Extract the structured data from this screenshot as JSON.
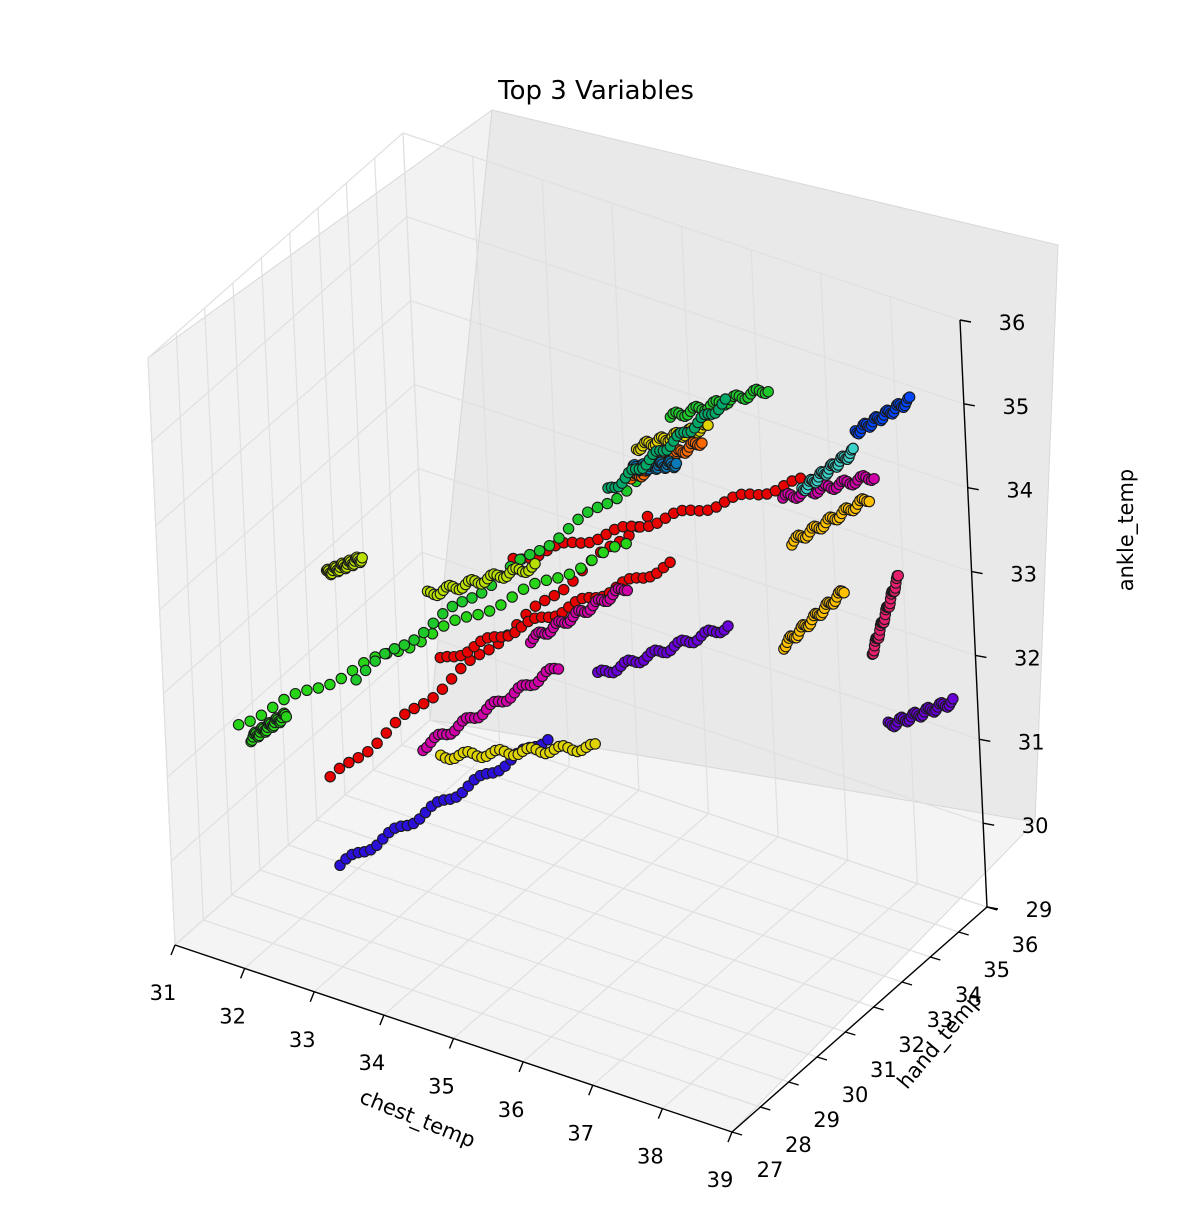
{
  "chart_data": {
    "type": "scatter",
    "title": "Top 3 Variables",
    "xlabel": "chest_temp",
    "ylabel": "hand_temp",
    "zlabel": "ankle_temp",
    "xlim": [
      31,
      39
    ],
    "ylim": [
      27,
      36
    ],
    "zlim": [
      29,
      36
    ],
    "x_ticks": [
      "31",
      "32",
      "33",
      "34",
      "35",
      "36",
      "37",
      "38",
      "39"
    ],
    "y_ticks": [
      "27",
      "28",
      "29",
      "30",
      "31",
      "32",
      "33",
      "34",
      "35",
      "36"
    ],
    "z_ticks": [
      "29",
      "30",
      "31",
      "32",
      "33",
      "34",
      "35",
      "36"
    ],
    "grid": true,
    "projection": "3d",
    "series": [
      {
        "color": "#2a10d8",
        "points": [
          [
            32.6,
            29.0,
            29.8
          ],
          [
            34.9,
            30.9,
            31.4
          ]
        ]
      },
      {
        "color": "#e60000",
        "points": [
          [
            32.0,
            30.2,
            30.3
          ],
          [
            35.6,
            33.0,
            33.6
          ]
        ]
      },
      {
        "color": "#e60000",
        "points": [
          [
            33.6,
            30.4,
            32.1
          ],
          [
            36.2,
            32.3,
            33.4
          ]
        ]
      },
      {
        "color": "#e60000",
        "points": [
          [
            34.3,
            31.4,
            33.2
          ],
          [
            37.6,
            33.6,
            34.4
          ]
        ]
      },
      {
        "color": "#27d418",
        "points": [
          [
            31.0,
            29.5,
            30.9
          ],
          [
            35.4,
            32.7,
            33.3
          ]
        ]
      },
      {
        "color": "#27d418",
        "points": [
          [
            31.0,
            29.9,
            30.6
          ],
          [
            31.4,
            30.2,
            30.9
          ]
        ]
      },
      {
        "color": "#1ec82a",
        "points": [
          [
            32.4,
            30.3,
            31.6
          ],
          [
            36.1,
            33.2,
            34.5
          ]
        ]
      },
      {
        "color": "#1ec82a",
        "points": [
          [
            36.0,
            33.0,
            34.9
          ],
          [
            37.1,
            33.8,
            35.3
          ]
        ]
      },
      {
        "color": "#b8e000",
        "points": [
          [
            32.0,
            30.4,
            32.7
          ],
          [
            32.4,
            30.7,
            32.9
          ]
        ]
      },
      {
        "color": "#b8e000",
        "points": [
          [
            33.2,
            31.0,
            32.6
          ],
          [
            34.4,
            31.9,
            33.0
          ]
        ]
      },
      {
        "color": "#e0d400",
        "points": [
          [
            33.5,
            30.5,
            30.9
          ],
          [
            35.2,
            31.8,
            31.1
          ]
        ]
      },
      {
        "color": "#e0d400",
        "points": [
          [
            35.7,
            32.5,
            34.6
          ],
          [
            36.5,
            33.1,
            34.9
          ]
        ]
      },
      {
        "color": "#d000a8",
        "points": [
          [
            33.2,
            30.6,
            30.9
          ],
          [
            34.8,
            31.6,
            32.0
          ]
        ]
      },
      {
        "color": "#d000a8",
        "points": [
          [
            34.5,
            31.4,
            32.3
          ],
          [
            35.6,
            32.2,
            33.0
          ]
        ]
      },
      {
        "color": "#d000a8",
        "points": [
          [
            37.2,
            33.9,
            34.0
          ],
          [
            38.2,
            34.7,
            34.3
          ]
        ]
      },
      {
        "color": "#6a00d8",
        "points": [
          [
            35.2,
            32.0,
            31.9
          ],
          [
            36.7,
            33.0,
            32.6
          ]
        ]
      },
      {
        "color": "#6a00d8",
        "points": [
          [
            38.2,
            34.8,
            31.3
          ],
          [
            38.9,
            35.4,
            31.6
          ]
        ]
      },
      {
        "color": "#0046ff",
        "points": [
          [
            38.0,
            34.6,
            34.8
          ],
          [
            38.6,
            35.1,
            35.2
          ]
        ]
      },
      {
        "color": "#e61e6e",
        "points": [
          [
            38.1,
            34.6,
            32.2
          ],
          [
            38.4,
            34.9,
            33.1
          ]
        ]
      },
      {
        "color": "#ffc000",
        "points": [
          [
            37.2,
            33.7,
            32.3
          ],
          [
            37.9,
            34.2,
            33.0
          ]
        ]
      },
      {
        "color": "#ffc000",
        "points": [
          [
            37.3,
            33.9,
            33.5
          ],
          [
            38.2,
            34.5,
            34.1
          ]
        ]
      },
      {
        "color": "#ff6a00",
        "points": [
          [
            35.6,
            32.5,
            34.2
          ],
          [
            36.4,
            33.1,
            34.7
          ]
        ]
      },
      {
        "color": "#0a7ab8",
        "points": [
          [
            35.6,
            32.6,
            34.3
          ],
          [
            36.1,
            32.9,
            34.4
          ]
        ]
      },
      {
        "color": "#00a868",
        "points": [
          [
            35.3,
            32.4,
            34.0
          ],
          [
            36.6,
            33.5,
            35.1
          ]
        ]
      },
      {
        "color": "#3bd0c8",
        "points": [
          [
            37.4,
            34.1,
            34.1
          ],
          [
            38.0,
            34.5,
            34.6
          ]
        ]
      }
    ]
  }
}
